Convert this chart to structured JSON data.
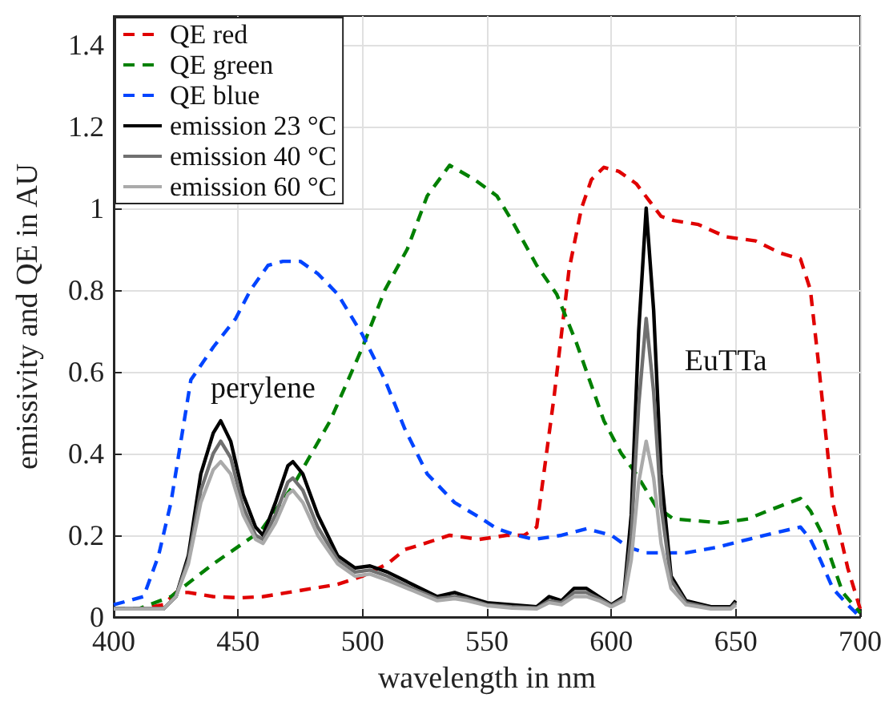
{
  "chart_data": {
    "type": "line",
    "xlabel": "wavelength in nm",
    "ylabel": "emissivity and QE in AU",
    "xlim": [
      400,
      700
    ],
    "xticks": [
      400,
      450,
      500,
      550,
      600,
      650,
      700
    ],
    "ylim": [
      0,
      1.47
    ],
    "yticks": [
      0,
      0.2,
      0.4,
      0.6,
      0.8,
      1,
      1.2,
      1.4
    ],
    "grid": true,
    "legend": "top left",
    "marker": "none",
    "series": [
      {
        "name": "QE red",
        "color": "#e00000",
        "line_style": "dashed",
        "x": [
          400,
          410,
          420,
          425,
          430,
          440,
          451,
          460,
          470,
          480,
          490,
          500,
          510,
          517,
          525,
          535,
          547,
          558,
          565,
          570,
          577,
          583,
          588,
          592,
          597,
          603,
          610,
          615,
          620,
          625,
          635,
          646,
          658,
          668,
          676,
          680,
          683,
          689,
          695,
          700
        ],
        "values": [
          0.02,
          0.02,
          0.03,
          0.06,
          0.06,
          0.05,
          0.047,
          0.05,
          0.06,
          0.07,
          0.08,
          0.1,
          0.13,
          0.165,
          0.18,
          0.2,
          0.19,
          0.2,
          0.2,
          0.22,
          0.54,
          0.85,
          1.0,
          1.07,
          1.1,
          1.09,
          1.06,
          1.02,
          0.98,
          0.97,
          0.96,
          0.93,
          0.92,
          0.89,
          0.876,
          0.8,
          0.635,
          0.28,
          0.12,
          0.02
        ]
      },
      {
        "name": "QE green",
        "color": "#008000",
        "line_style": "dashed",
        "x": [
          400,
          410,
          423,
          440,
          459,
          472,
          487,
          500,
          509,
          518,
          526,
          535,
          545,
          554,
          560,
          570,
          578,
          586,
          597,
          604,
          610,
          618,
          625,
          635,
          644,
          655,
          663,
          676,
          680,
          685,
          693,
          700
        ],
        "values": [
          0.02,
          0.02,
          0.05,
          0.13,
          0.21,
          0.32,
          0.48,
          0.66,
          0.8,
          0.9,
          1.03,
          1.105,
          1.07,
          1.03,
          0.97,
          0.86,
          0.79,
          0.67,
          0.48,
          0.4,
          0.35,
          0.27,
          0.24,
          0.235,
          0.23,
          0.24,
          0.26,
          0.29,
          0.26,
          0.2,
          0.06,
          0.01
        ]
      },
      {
        "name": "QE blue",
        "color": "#0044ff",
        "line_style": "dashed",
        "x": [
          400,
          406,
          412,
          418,
          423,
          431,
          440,
          449,
          455,
          462,
          468,
          475,
          482,
          490,
          500,
          509,
          517,
          526,
          537,
          548,
          554,
          562,
          569,
          580,
          590,
          600,
          607,
          614,
          622,
          630,
          642,
          655,
          665,
          676,
          680,
          684,
          689,
          695,
          700
        ],
        "values": [
          0.03,
          0.04,
          0.05,
          0.15,
          0.28,
          0.58,
          0.66,
          0.73,
          0.8,
          0.86,
          0.87,
          0.87,
          0.84,
          0.79,
          0.69,
          0.58,
          0.46,
          0.35,
          0.28,
          0.24,
          0.216,
          0.2,
          0.19,
          0.2,
          0.216,
          0.2,
          0.17,
          0.157,
          0.157,
          0.157,
          0.17,
          0.19,
          0.205,
          0.22,
          0.19,
          0.14,
          0.07,
          0.03,
          0.0
        ]
      },
      {
        "name": "emission 23 °C",
        "color": "#000000",
        "line_style": "solid",
        "x": [
          400,
          410,
          420,
          425,
          430,
          435,
          440,
          443,
          447,
          452,
          457,
          460,
          465,
          470,
          472,
          476,
          482,
          490,
          497,
          503,
          510,
          520,
          530,
          537,
          542,
          550,
          560,
          570,
          575,
          580,
          585,
          590,
          595,
          600,
          605,
          608,
          611,
          614,
          617,
          620,
          624,
          630,
          640,
          648,
          650
        ],
        "values": [
          0.02,
          0.02,
          0.02,
          0.05,
          0.15,
          0.35,
          0.45,
          0.48,
          0.43,
          0.3,
          0.22,
          0.2,
          0.28,
          0.37,
          0.38,
          0.35,
          0.25,
          0.15,
          0.12,
          0.125,
          0.11,
          0.08,
          0.05,
          0.06,
          0.05,
          0.035,
          0.03,
          0.025,
          0.05,
          0.04,
          0.07,
          0.07,
          0.05,
          0.03,
          0.05,
          0.25,
          0.7,
          1.0,
          0.75,
          0.35,
          0.1,
          0.04,
          0.025,
          0.025,
          0.04
        ]
      },
      {
        "name": "emission 40 °C",
        "color": "#707070",
        "line_style": "solid",
        "x": [
          400,
          410,
          420,
          425,
          430,
          435,
          440,
          443,
          447,
          452,
          457,
          460,
          465,
          470,
          472,
          476,
          482,
          490,
          497,
          503,
          510,
          520,
          530,
          537,
          542,
          550,
          560,
          570,
          575,
          580,
          585,
          590,
          595,
          600,
          605,
          608,
          611,
          614,
          617,
          620,
          624,
          630,
          640,
          648,
          650
        ],
        "values": [
          0.02,
          0.02,
          0.02,
          0.05,
          0.14,
          0.31,
          0.4,
          0.43,
          0.39,
          0.27,
          0.2,
          0.19,
          0.25,
          0.33,
          0.34,
          0.31,
          0.22,
          0.14,
          0.11,
          0.115,
          0.1,
          0.07,
          0.045,
          0.05,
          0.045,
          0.03,
          0.025,
          0.022,
          0.04,
          0.035,
          0.06,
          0.06,
          0.045,
          0.028,
          0.045,
          0.2,
          0.52,
          0.73,
          0.55,
          0.27,
          0.09,
          0.035,
          0.022,
          0.022,
          0.035
        ]
      },
      {
        "name": "emission 60 °C",
        "color": "#aaaaaa",
        "line_style": "solid",
        "x": [
          400,
          410,
          420,
          425,
          430,
          435,
          440,
          443,
          447,
          452,
          457,
          460,
          465,
          470,
          472,
          476,
          482,
          490,
          497,
          503,
          510,
          520,
          530,
          537,
          542,
          550,
          560,
          570,
          575,
          580,
          585,
          590,
          595,
          600,
          605,
          608,
          611,
          614,
          617,
          620,
          624,
          630,
          640,
          648,
          650
        ],
        "values": [
          0.02,
          0.02,
          0.02,
          0.05,
          0.13,
          0.28,
          0.36,
          0.38,
          0.35,
          0.25,
          0.19,
          0.18,
          0.23,
          0.3,
          0.31,
          0.28,
          0.2,
          0.13,
          0.1,
          0.105,
          0.09,
          0.065,
          0.04,
          0.045,
          0.04,
          0.028,
          0.022,
          0.02,
          0.035,
          0.03,
          0.05,
          0.05,
          0.04,
          0.025,
          0.04,
          0.14,
          0.33,
          0.43,
          0.34,
          0.18,
          0.07,
          0.03,
          0.02,
          0.02,
          0.03
        ]
      }
    ],
    "annotations": [
      "perylene",
      "EuTTa"
    ]
  }
}
